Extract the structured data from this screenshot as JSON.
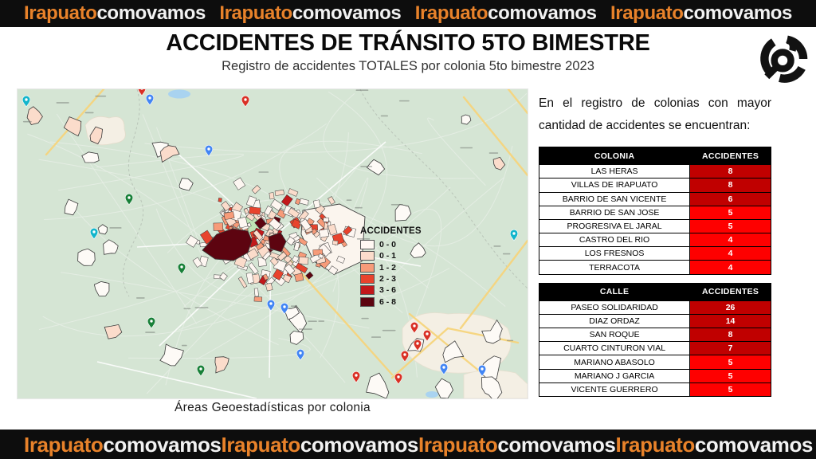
{
  "banner": {
    "orange_text": "Irapuato",
    "white_text": "comovamos",
    "repeat": 4,
    "bg_color": "#0d0d0d",
    "orange_color": "#E8822A",
    "white_color": "#F2F2F2"
  },
  "header": {
    "title": "ACCIDENTES DE TRÁNSITO 5TO BIMESTRE",
    "subtitle": "Registro de accidentes TOTALES por colonia 5to bimestre 2023"
  },
  "map": {
    "caption": "Áreas Geoestadísticas por colonia",
    "legend": {
      "title": "ACCIDENTES",
      "items": [
        {
          "label": "0 - 0",
          "color": "#FFF8F3"
        },
        {
          "label": "0 - 1",
          "color": "#FBDCCB"
        },
        {
          "label": "1 - 2",
          "color": "#F79B79"
        },
        {
          "label": "2 - 3",
          "color": "#E8432D"
        },
        {
          "label": "3 - 6",
          "color": "#C2181B"
        },
        {
          "label": "6 - 8",
          "color": "#5D0410"
        }
      ]
    }
  },
  "panel": {
    "intro": "En el registro de colonias con mayor cantidad de accidentes se encuentran:",
    "value_colors": {
      "high": "#C00000",
      "low": "#FE0000"
    },
    "tables": [
      {
        "id": "colonias",
        "headers": [
          "COLONIA",
          "ACCIDENTES"
        ],
        "rows": [
          {
            "label": "LAS HERAS",
            "value": "8",
            "tier": "high"
          },
          {
            "label": "VILLAS DE IRAPUATO",
            "value": "8",
            "tier": "high"
          },
          {
            "label": "BARRIO DE SAN VICENTE",
            "value": "6",
            "tier": "high"
          },
          {
            "label": "BARRIO DE SAN JOSE",
            "value": "5",
            "tier": "low"
          },
          {
            "label": "PROGRESIVA EL JARAL",
            "value": "5",
            "tier": "low"
          },
          {
            "label": "CASTRO DEL RIO",
            "value": "4",
            "tier": "low"
          },
          {
            "label": "LOS FRESNOS",
            "value": "4",
            "tier": "low"
          },
          {
            "label": "TERRACOTA",
            "value": "4",
            "tier": "low"
          }
        ]
      },
      {
        "id": "calles",
        "headers": [
          "CALLE",
          "ACCIDENTES"
        ],
        "rows": [
          {
            "label": "PASEO SOLIDARIDAD",
            "value": "26",
            "tier": "high"
          },
          {
            "label": "DIAZ ORDAZ",
            "value": "14",
            "tier": "high"
          },
          {
            "label": "SAN ROQUE",
            "value": "8",
            "tier": "high"
          },
          {
            "label": "CUARTO CINTURON VIAL",
            "value": "7",
            "tier": "high"
          },
          {
            "label": "MARIANO ABASOLO",
            "value": "5",
            "tier": "low"
          },
          {
            "label": "MARIANO J GARCIA",
            "value": "5",
            "tier": "low"
          },
          {
            "label": "VICENTE GUERRERO",
            "value": "5",
            "tier": "low"
          }
        ]
      }
    ]
  },
  "map_style": {
    "background": "#d5e5d4",
    "urban": "#f4efe4",
    "road_yellow": "#f6d47c",
    "road_white": "#ffffff",
    "water": "#a9d3f0",
    "park": "#bfe3b4",
    "outline": "#3b3b3b"
  }
}
